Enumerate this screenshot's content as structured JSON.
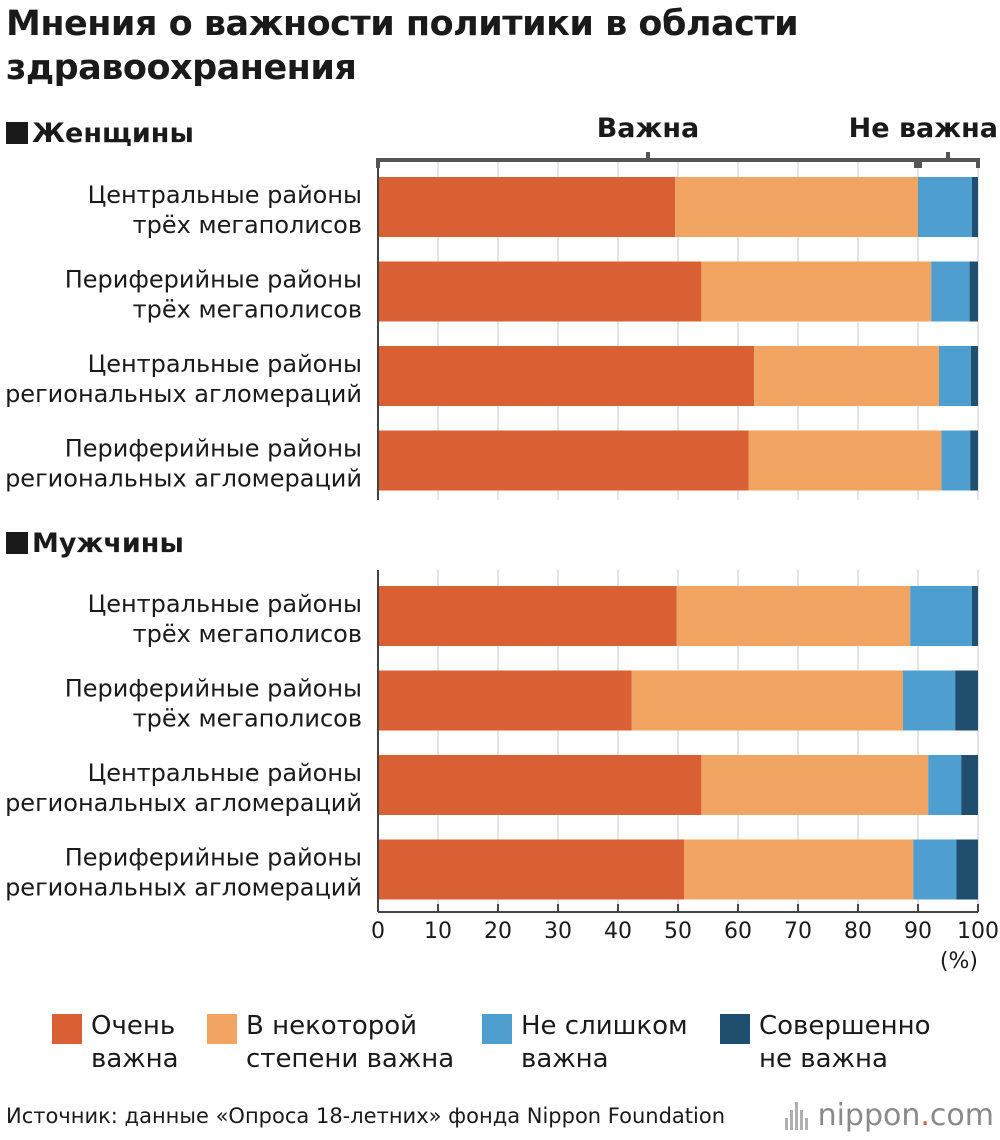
{
  "title": "Мнения о важности политики в области здравоохранения",
  "sections": [
    {
      "heading": "Женщины"
    },
    {
      "heading": "Мужчины"
    }
  ],
  "group_labels": {
    "important": "Важна",
    "not_important": "Не важна"
  },
  "colors": {
    "very_important": "#d96035",
    "somewhat_important": "#f2a462",
    "not_very_important": "#4f9ed0",
    "not_at_all_important": "#1f4e6e"
  },
  "chart_data": {
    "type": "bar",
    "orientation": "horizontal",
    "stacked": true,
    "xlim": [
      0,
      100
    ],
    "x_ticks": [
      0,
      10,
      20,
      30,
      40,
      50,
      60,
      70,
      80,
      90,
      100
    ],
    "x_unit": "(%)",
    "grid": true,
    "legend_position": "bottom",
    "series": [
      {
        "name": "Очень важна",
        "key": "very_important"
      },
      {
        "name": "В некоторой степени важна",
        "key": "somewhat_important"
      },
      {
        "name": "Не слишком важна",
        "key": "not_very_important"
      },
      {
        "name": "Совершенно не важна",
        "key": "not_at_all_important"
      }
    ],
    "panels": [
      {
        "label": "Женщины",
        "categories": [
          "Центральные районы\nтрёх мегаполисов",
          "Периферийные районы\nтрёх мегаполисов",
          "Центральные районы\nрегиональных агломераций",
          "Периферийные районы\nрегиональных агломераций"
        ],
        "values": [
          [
            49.5,
            40.5,
            9.0,
            1.0
          ],
          [
            53.9,
            38.3,
            6.4,
            1.4
          ],
          [
            62.7,
            30.8,
            5.3,
            1.2
          ],
          [
            61.8,
            32.1,
            4.8,
            1.3
          ]
        ]
      },
      {
        "label": "Мужчины",
        "categories": [
          "Центральные районы\nтрёх мегаполисов",
          "Периферийные районы\nтрёх мегаполисов",
          "Центральные районы\nрегиональных агломераций",
          "Периферийные районы\nрегиональных агломераций"
        ],
        "values": [
          [
            49.8,
            38.9,
            10.3,
            1.0
          ],
          [
            42.3,
            45.2,
            8.7,
            3.8
          ],
          [
            53.9,
            37.8,
            5.5,
            2.8
          ],
          [
            51.0,
            38.2,
            7.2,
            3.6
          ]
        ]
      }
    ]
  },
  "legend": [
    {
      "key": "very_important",
      "label": "Очень\nважна"
    },
    {
      "key": "somewhat_important",
      "label": "В некоторой\nстепени важна"
    },
    {
      "key": "not_very_important",
      "label": "Не слишком\nважна"
    },
    {
      "key": "not_at_all_important",
      "label": "Совершенно\nне важна"
    }
  ],
  "source": "Источник: данные «Опроса 18-летних» фонда Nippon Foundation",
  "logo": {
    "main": "nippon",
    "dot": ".",
    "tld": "com"
  }
}
